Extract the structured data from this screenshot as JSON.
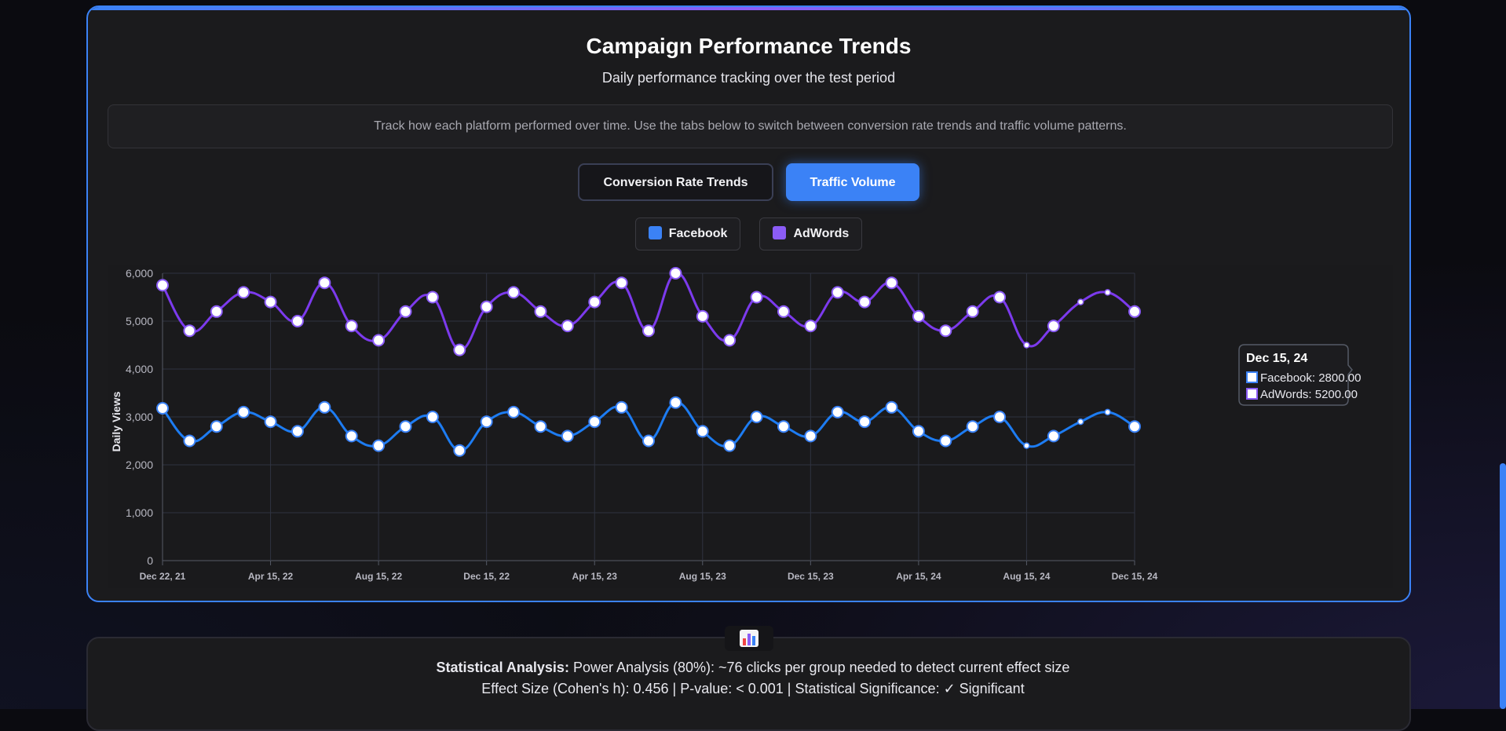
{
  "header": {
    "title": "Campaign Performance Trends",
    "subtitle": "Daily performance tracking over the test period",
    "info": "Track how each platform performed over time. Use the tabs below to switch between conversion rate trends and traffic volume patterns."
  },
  "tabs": [
    {
      "label": "Conversion Rate Trends",
      "active": false
    },
    {
      "label": "Traffic Volume",
      "active": true
    }
  ],
  "legend": [
    {
      "label": "Facebook",
      "color": "#3b82f6"
    },
    {
      "label": "AdWords",
      "color": "#8b5cf6"
    }
  ],
  "tooltip": {
    "title": "Dec 15, 24",
    "facebook": "Facebook: 2800.00",
    "adwords": "AdWords: 5200.00"
  },
  "stats": {
    "label": "Statistical Analysis:",
    "line1": " Power Analysis (80%): ~76 clicks per group needed to detect current effect size",
    "line2": "Effect Size (Cohen's h): 0.456 | P-value: < 0.001 | Statistical Significance: ✓ Significant",
    "icon": "bar-chart-icon"
  },
  "chart_data": {
    "type": "line",
    "title": "",
    "xlabel": "",
    "ylabel": "Daily Views",
    "ylim": [
      0,
      6000
    ],
    "yticks": [
      "0",
      "1,000",
      "2,000",
      "3,000",
      "4,000",
      "5,000",
      "6,000"
    ],
    "xticks": [
      "Dec 22, 21",
      "Apr 15, 22",
      "Aug 15, 22",
      "Dec 15, 22",
      "Apr 15, 23",
      "Aug 15, 23",
      "Dec 15, 23",
      "Apr 15, 24",
      "Aug 15, 24",
      "Dec 15, 24"
    ],
    "grid": true,
    "series": [
      {
        "name": "Facebook",
        "color": "#3b82f6",
        "values": [
          3180,
          2500,
          2800,
          3100,
          2900,
          2700,
          3200,
          2600,
          2400,
          2800,
          3000,
          2300,
          2900,
          3100,
          2800,
          2600,
          2900,
          3200,
          2500,
          3300,
          2700,
          2400,
          3000,
          2800,
          2600,
          3100,
          2900,
          3200,
          2700,
          2500,
          2800,
          3000,
          2400,
          2600,
          2900,
          3100,
          2800
        ]
      },
      {
        "name": "AdWords",
        "color": "#8b5cf6",
        "values": [
          5750,
          4800,
          5200,
          5600,
          5400,
          5000,
          5800,
          4900,
          4600,
          5200,
          5500,
          4400,
          5300,
          5600,
          5200,
          4900,
          5400,
          5800,
          4800,
          6000,
          5100,
          4600,
          5500,
          5200,
          4900,
          5600,
          5400,
          5800,
          5100,
          4800,
          5200,
          5500,
          4500,
          4900,
          5400,
          5600,
          5200
        ]
      }
    ]
  }
}
